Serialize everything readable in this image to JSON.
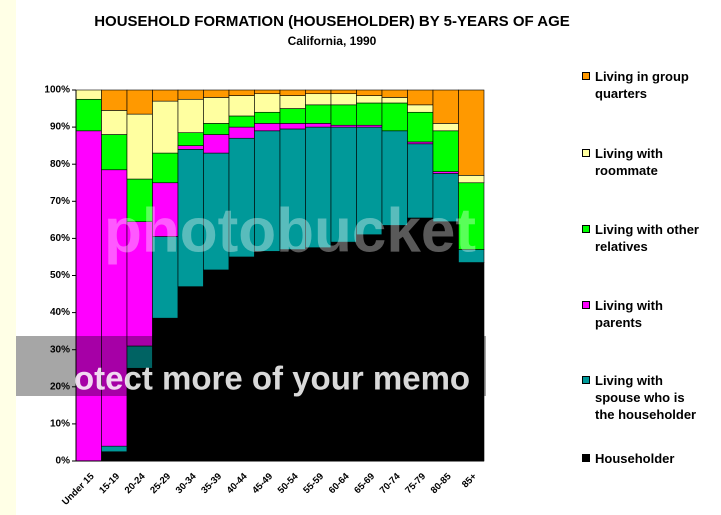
{
  "chart_data": {
    "type": "stacked-bar",
    "title": "HOUSEHOLD FORMATION (HOUSEHOLDER) BY 5-YEARS OF AGE",
    "subtitle": "California, 1990",
    "categories": [
      "Under 15",
      "15-19",
      "20-24",
      "25-29",
      "30-34",
      "35-39",
      "40-44",
      "45-49",
      "50-54",
      "55-59",
      "60-64",
      "65-69",
      "70-74",
      "75-79",
      "80-85",
      "85+"
    ],
    "series": [
      {
        "name": "Householder",
        "color": "#000000",
        "values": [
          0,
          2.5,
          25,
          38.5,
          47,
          51.5,
          55,
          56.5,
          57,
          57.5,
          59,
          61,
          63.5,
          65.5,
          64.5,
          53.5
        ]
      },
      {
        "name": "Living with spouse who is the householder",
        "color": "#009999",
        "values": [
          0,
          1.5,
          6,
          22,
          37,
          31.5,
          32,
          32.5,
          32.5,
          32.5,
          31,
          29,
          25.5,
          20,
          13,
          3.5
        ]
      },
      {
        "name": "Living with parents",
        "color": "#ff00ff",
        "values": [
          89,
          74.5,
          33.5,
          14.5,
          1,
          5,
          3,
          2,
          1.5,
          1,
          0.5,
          0.5,
          0,
          0.5,
          0.5,
          0
        ]
      },
      {
        "name": "Living with other relatives",
        "color": "#00ff00",
        "values": [
          8.5,
          9.5,
          11.5,
          8,
          3.5,
          3,
          3,
          3,
          4,
          5,
          5.5,
          6,
          7.5,
          8,
          11,
          18
        ]
      },
      {
        "name": "Living with roommate",
        "color": "#ffffa0",
        "values": [
          2.5,
          6.5,
          17.5,
          14,
          9,
          7,
          5.5,
          5,
          3.5,
          3,
          3,
          2,
          1.5,
          2,
          2,
          2
        ]
      },
      {
        "name": "Living in group quarters",
        "color": "#ff9900",
        "values": [
          0,
          5.5,
          6.5,
          3,
          2.5,
          2,
          1.5,
          1,
          1.5,
          1,
          1,
          1.5,
          2,
          4,
          9,
          23
        ]
      }
    ],
    "ylim": [
      0,
      100
    ],
    "yticks": [
      {
        "value": 0,
        "label": "0%"
      },
      {
        "value": 10,
        "label": "10%"
      },
      {
        "value": 20,
        "label": "20%"
      },
      {
        "value": 30,
        "label": "30%"
      },
      {
        "value": 40,
        "label": "40%"
      },
      {
        "value": 50,
        "label": "50%"
      },
      {
        "value": 60,
        "label": "60%"
      },
      {
        "value": 70,
        "label": "70%"
      },
      {
        "value": 80,
        "label": "80%"
      },
      {
        "value": 90,
        "label": "90%"
      },
      {
        "value": 100,
        "label": "100%"
      }
    ],
    "watermark": [
      "photobucket",
      "otect more of your memo"
    ]
  }
}
